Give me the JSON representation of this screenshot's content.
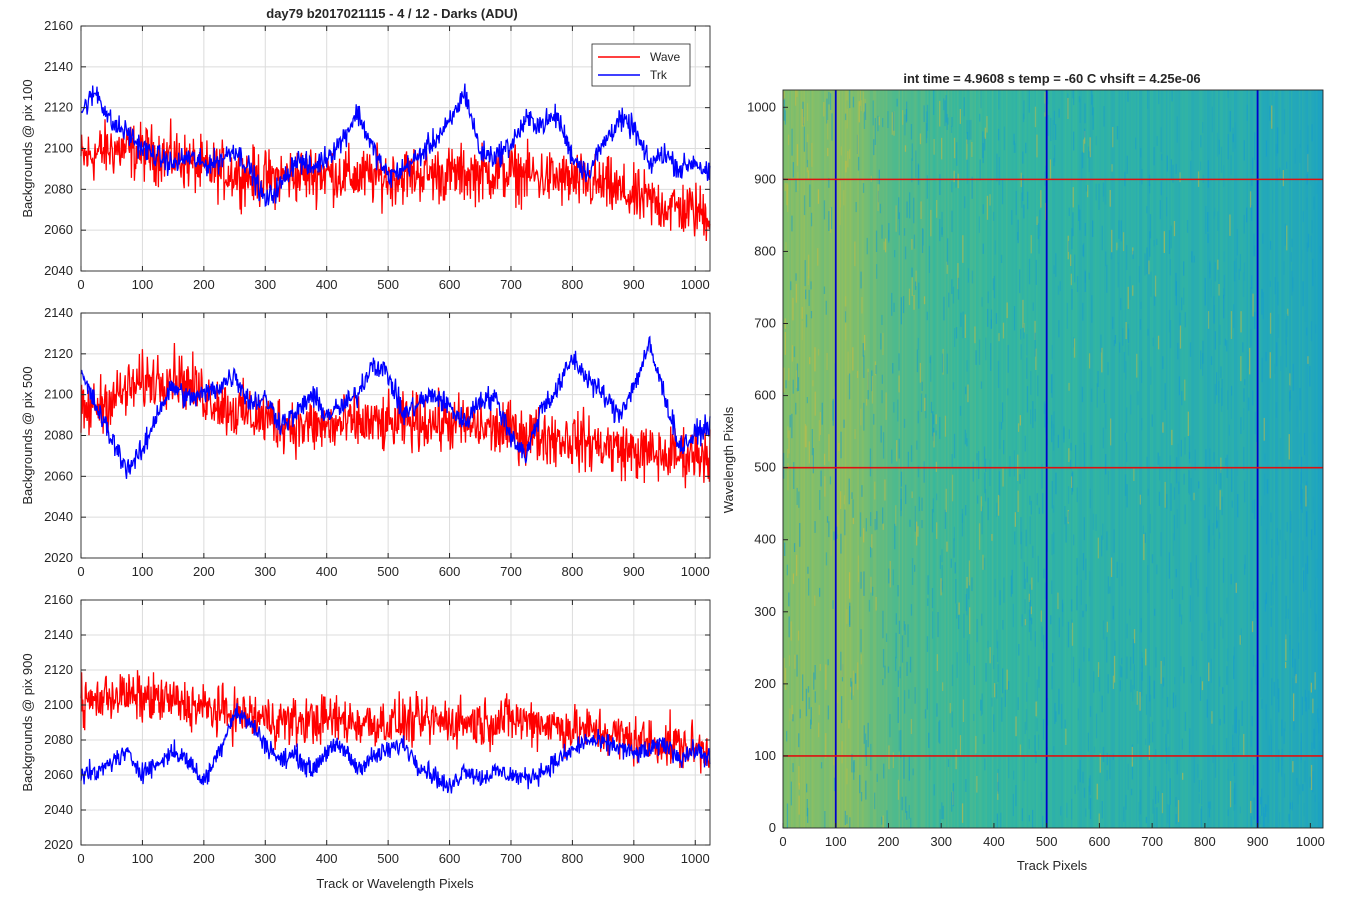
{
  "figure": {
    "title": "day79 b2017021115 - 4 / 12 - Darks (ADU)",
    "xlabel_left": "Track or Wavelength Pixels",
    "legend": [
      {
        "name": "Wave",
        "color": "#ff0000"
      },
      {
        "name": "Trk",
        "color": "#0000ff"
      }
    ]
  },
  "chart_data": [
    {
      "type": "line",
      "ylabel": "Backgrounds @ pix 100",
      "xlim": [
        0,
        1024
      ],
      "ylim": [
        2040,
        2160
      ],
      "xticks": [
        0,
        100,
        200,
        300,
        400,
        500,
        600,
        700,
        800,
        900,
        1000
      ],
      "yticks": [
        2040,
        2060,
        2080,
        2100,
        2120,
        2140,
        2160
      ],
      "grid": true,
      "legend_position": "top-right",
      "series": [
        {
          "name": "Wave",
          "color": "#ff0000",
          "noise": 12,
          "x": [
            0,
            50,
            100,
            150,
            200,
            250,
            300,
            350,
            400,
            450,
            500,
            550,
            600,
            650,
            700,
            750,
            800,
            850,
            900,
            950,
            1024
          ],
          "y": [
            2095,
            2100,
            2098,
            2096,
            2090,
            2088,
            2085,
            2087,
            2088,
            2086,
            2086,
            2088,
            2087,
            2088,
            2088,
            2086,
            2084,
            2082,
            2076,
            2072,
            2068
          ]
        },
        {
          "name": "Trk",
          "color": "#0000ff",
          "noise": 5,
          "x": [
            0,
            25,
            50,
            75,
            100,
            125,
            150,
            175,
            200,
            225,
            250,
            275,
            300,
            325,
            350,
            375,
            400,
            425,
            450,
            475,
            500,
            525,
            550,
            575,
            600,
            625,
            650,
            675,
            700,
            725,
            750,
            775,
            800,
            825,
            850,
            875,
            900,
            925,
            950,
            975,
            1000,
            1024
          ],
          "y": [
            2118,
            2128,
            2112,
            2108,
            2100,
            2096,
            2092,
            2096,
            2092,
            2094,
            2100,
            2090,
            2074,
            2082,
            2095,
            2090,
            2096,
            2104,
            2118,
            2100,
            2086,
            2090,
            2096,
            2104,
            2112,
            2128,
            2098,
            2096,
            2102,
            2114,
            2112,
            2116,
            2096,
            2088,
            2102,
            2114,
            2110,
            2092,
            2098,
            2090,
            2094,
            2086
          ]
        }
      ]
    },
    {
      "type": "line",
      "ylabel": "Backgrounds @ pix 500",
      "xlim": [
        0,
        1024
      ],
      "ylim": [
        2020,
        2140
      ],
      "xticks": [
        0,
        100,
        200,
        300,
        400,
        500,
        600,
        700,
        800,
        900,
        1000
      ],
      "yticks": [
        2020,
        2040,
        2060,
        2080,
        2100,
        2120,
        2140
      ],
      "grid": true,
      "series": [
        {
          "name": "Wave",
          "color": "#ff0000",
          "noise": 12,
          "x": [
            0,
            50,
            100,
            150,
            200,
            250,
            300,
            350,
            400,
            450,
            500,
            550,
            600,
            650,
            700,
            750,
            800,
            850,
            900,
            950,
            1024
          ],
          "y": [
            2090,
            2098,
            2106,
            2110,
            2100,
            2092,
            2088,
            2085,
            2084,
            2086,
            2085,
            2087,
            2086,
            2084,
            2082,
            2080,
            2078,
            2075,
            2072,
            2070,
            2072
          ]
        },
        {
          "name": "Trk",
          "color": "#0000ff",
          "noise": 5,
          "x": [
            0,
            25,
            50,
            75,
            100,
            125,
            150,
            175,
            200,
            225,
            250,
            275,
            300,
            325,
            350,
            375,
            400,
            425,
            450,
            475,
            500,
            525,
            550,
            575,
            600,
            625,
            650,
            675,
            700,
            725,
            750,
            775,
            800,
            825,
            850,
            875,
            900,
            925,
            950,
            975,
            1000,
            1024
          ],
          "y": [
            2110,
            2094,
            2078,
            2064,
            2072,
            2092,
            2104,
            2098,
            2100,
            2104,
            2110,
            2096,
            2098,
            2086,
            2090,
            2100,
            2090,
            2094,
            2100,
            2116,
            2110,
            2090,
            2096,
            2100,
            2094,
            2086,
            2098,
            2098,
            2080,
            2070,
            2094,
            2102,
            2118,
            2108,
            2100,
            2090,
            2104,
            2124,
            2100,
            2074,
            2080,
            2086
          ]
        }
      ]
    },
    {
      "type": "line",
      "ylabel": "Backgrounds @ pix 900",
      "xlim": [
        0,
        1024
      ],
      "ylim": [
        2020,
        2160
      ],
      "xticks": [
        0,
        100,
        200,
        300,
        400,
        500,
        600,
        700,
        800,
        900,
        1000
      ],
      "yticks": [
        2020,
        2040,
        2060,
        2080,
        2100,
        2120,
        2140,
        2160
      ],
      "grid": true,
      "series": [
        {
          "name": "Wave",
          "color": "#ff0000",
          "noise": 12,
          "x": [
            0,
            50,
            100,
            150,
            200,
            250,
            300,
            350,
            400,
            450,
            500,
            550,
            600,
            650,
            700,
            750,
            800,
            850,
            900,
            950,
            1024
          ],
          "y": [
            2100,
            2106,
            2104,
            2102,
            2098,
            2095,
            2092,
            2090,
            2092,
            2090,
            2090,
            2090,
            2091,
            2090,
            2092,
            2090,
            2086,
            2084,
            2080,
            2078,
            2074
          ]
        },
        {
          "name": "Trk",
          "color": "#0000ff",
          "noise": 5,
          "x": [
            0,
            25,
            50,
            75,
            100,
            125,
            150,
            175,
            200,
            225,
            250,
            275,
            300,
            325,
            350,
            375,
            400,
            425,
            450,
            475,
            500,
            525,
            550,
            575,
            600,
            625,
            650,
            675,
            700,
            725,
            750,
            775,
            800,
            825,
            850,
            875,
            900,
            925,
            950,
            975,
            1000,
            1024
          ],
          "y": [
            2062,
            2060,
            2068,
            2072,
            2062,
            2066,
            2074,
            2068,
            2056,
            2074,
            2096,
            2090,
            2078,
            2068,
            2072,
            2062,
            2074,
            2076,
            2064,
            2070,
            2074,
            2078,
            2066,
            2060,
            2052,
            2064,
            2058,
            2062,
            2060,
            2058,
            2062,
            2068,
            2074,
            2080,
            2078,
            2076,
            2072,
            2074,
            2078,
            2070,
            2074,
            2070
          ]
        }
      ]
    },
    {
      "type": "heatmap",
      "title": "int time = 4.9608 s    temp = -60 C    vhsift = 4.25e-06",
      "xlabel": "Track Pixels",
      "ylabel": "Wavelength Pixels",
      "xlim": [
        0,
        1024
      ],
      "ylim": [
        0,
        1024
      ],
      "xticks": [
        0,
        100,
        200,
        300,
        400,
        500,
        600,
        700,
        800,
        900,
        1000
      ],
      "yticks": [
        0,
        100,
        200,
        300,
        400,
        500,
        600,
        700,
        800,
        900,
        1000
      ],
      "colormap": "parula",
      "column_profile": {
        "x": [
          0,
          40,
          80,
          110,
          130,
          160,
          200,
          300,
          400,
          500,
          600,
          700,
          800,
          900,
          1000,
          1024
        ],
        "level": [
          0.62,
          0.64,
          0.62,
          0.66,
          0.64,
          0.6,
          0.56,
          0.52,
          0.5,
          0.48,
          0.47,
          0.46,
          0.45,
          0.44,
          0.42,
          0.4
        ]
      },
      "overlay_lines": [
        {
          "orientation": "vertical",
          "at": 100,
          "color": "#0000cc"
        },
        {
          "orientation": "vertical",
          "at": 500,
          "color": "#0000cc"
        },
        {
          "orientation": "vertical",
          "at": 900,
          "color": "#0000cc"
        },
        {
          "orientation": "horizontal",
          "at": 100,
          "color": "#dd1111"
        },
        {
          "orientation": "horizontal",
          "at": 500,
          "color": "#dd1111"
        },
        {
          "orientation": "horizontal",
          "at": 900,
          "color": "#dd1111"
        }
      ]
    }
  ]
}
